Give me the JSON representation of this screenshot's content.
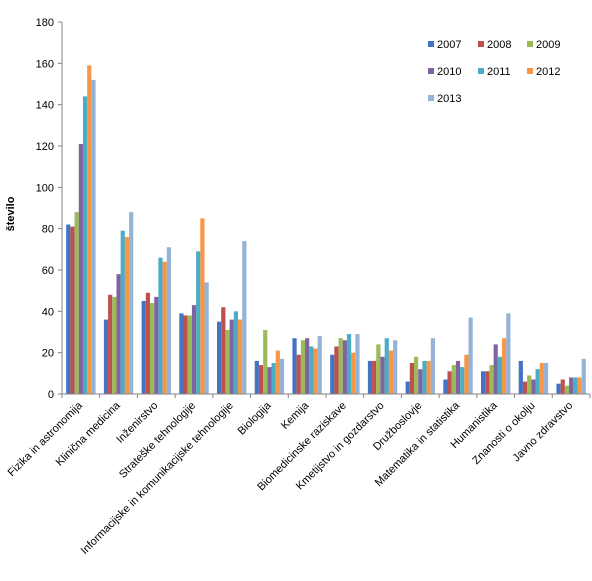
{
  "chart_data": {
    "type": "bar",
    "title": "",
    "xlabel": "",
    "ylabel": "število",
    "ylim": [
      0,
      180
    ],
    "yticks": [
      0,
      20,
      40,
      60,
      80,
      100,
      120,
      140,
      160,
      180
    ],
    "grid": false,
    "legend_position": "top-right",
    "categories": [
      "Fizika in astronomija",
      "Klinična medicina",
      "Inženirstvo",
      "Strateške tehnologije",
      "Informacijske in komunikacijske tehnologije",
      "Biologija",
      "Kemija",
      "Biomedicinske raziskave",
      "Kmetijstvo in gozdarstvo",
      "Družboslovje",
      "Matematika in statistika",
      "Humanistika",
      "Znanosti o okolju",
      "Javno zdravstvo"
    ],
    "series": [
      {
        "name": "2007",
        "color": "#4472c4",
        "values": [
          82,
          36,
          45,
          39,
          35,
          16,
          27,
          19,
          16,
          6,
          7,
          11,
          16,
          5
        ]
      },
      {
        "name": "2008",
        "color": "#c0504d",
        "values": [
          81,
          48,
          49,
          38,
          42,
          14,
          19,
          23,
          16,
          15,
          11,
          11,
          6,
          7
        ]
      },
      {
        "name": "2009",
        "color": "#9bbb59",
        "values": [
          88,
          47,
          44,
          38,
          31,
          31,
          26,
          27,
          24,
          18,
          14,
          14,
          9,
          4
        ]
      },
      {
        "name": "2010",
        "color": "#8064a2",
        "values": [
          121,
          58,
          47,
          43,
          36,
          13,
          27,
          26,
          18,
          12,
          16,
          24,
          7,
          8
        ]
      },
      {
        "name": "2011",
        "color": "#4bacc6",
        "values": [
          144,
          79,
          66,
          69,
          40,
          15,
          23,
          29,
          27,
          16,
          13,
          18,
          12,
          8
        ]
      },
      {
        "name": "2012",
        "color": "#f79646",
        "values": [
          159,
          76,
          64,
          85,
          36,
          21,
          22,
          20,
          21,
          16,
          19,
          27,
          15,
          8
        ]
      },
      {
        "name": "2013",
        "color": "#95b3d7",
        "values": [
          152,
          88,
          71,
          54,
          74,
          17,
          28,
          29,
          26,
          27,
          37,
          39,
          15,
          17
        ]
      }
    ]
  }
}
